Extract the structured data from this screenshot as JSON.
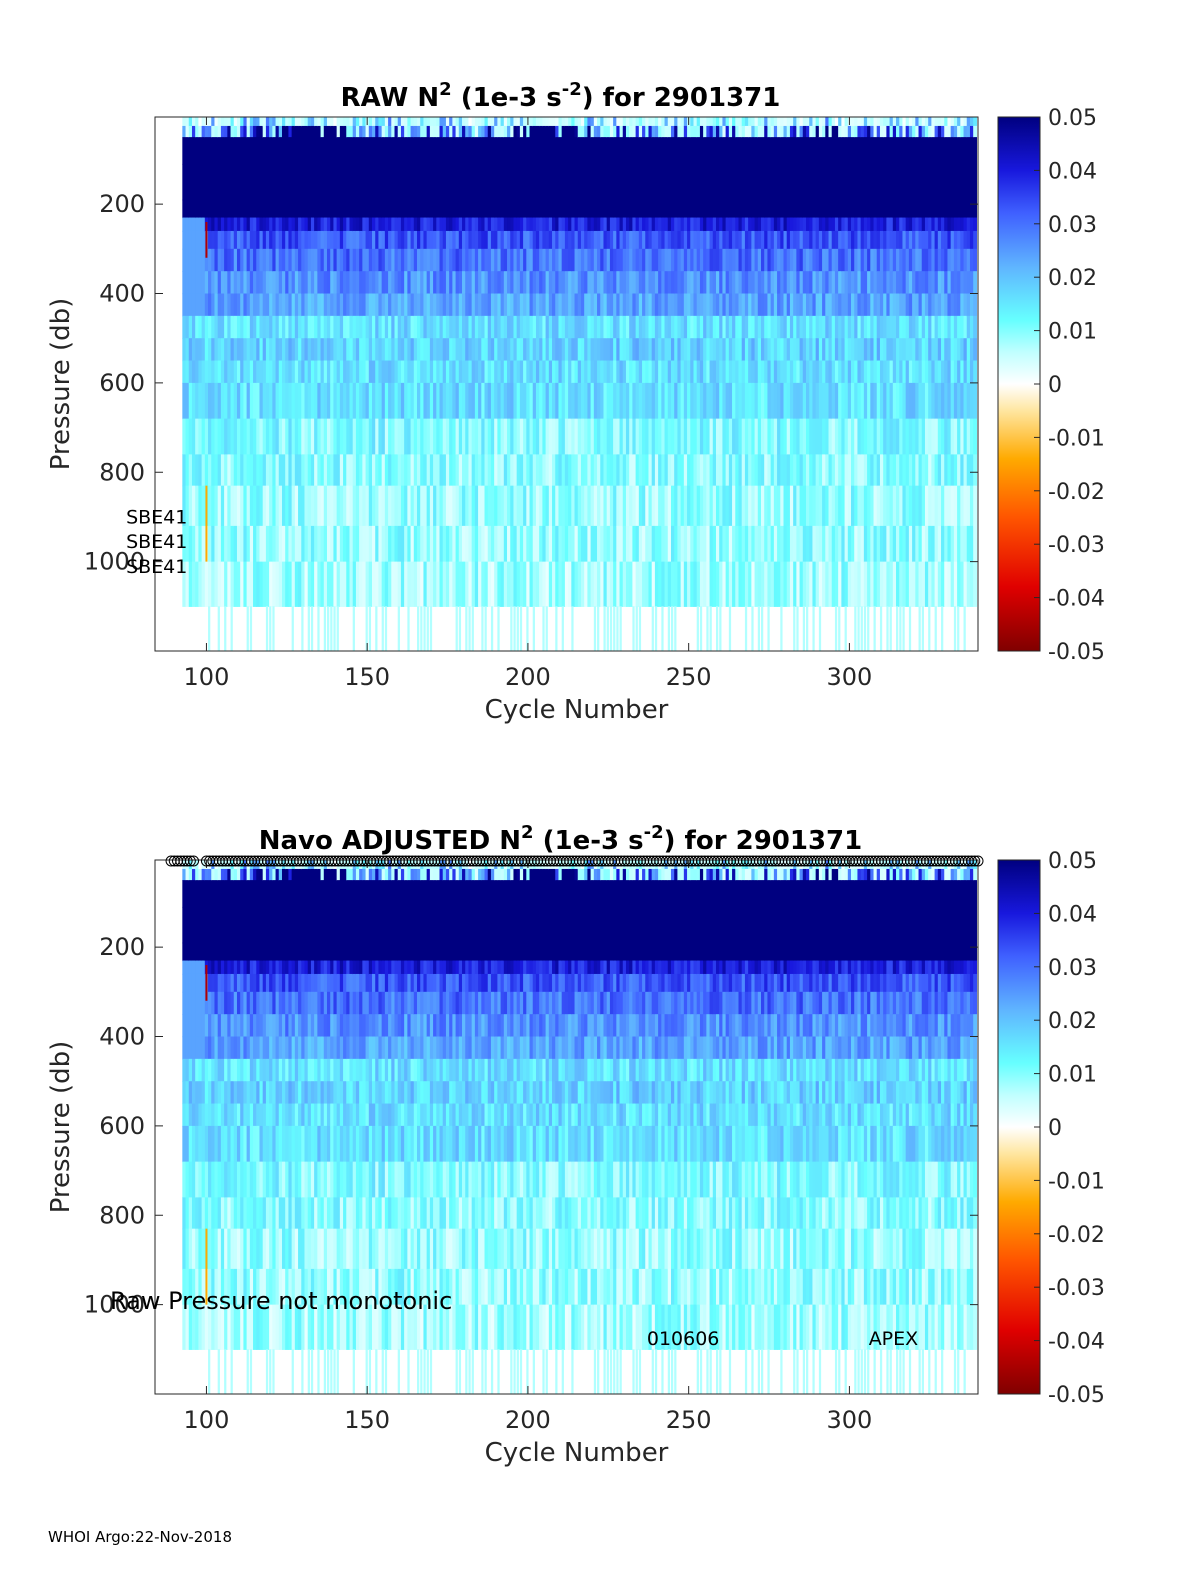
{
  "figure": {
    "footer": "WHOI Argo:22-Nov-2018"
  },
  "chart_data": [
    {
      "type": "heatmap",
      "title_parts": {
        "pre": "RAW N",
        "sup1": "2",
        "mid": " (1e-3 s",
        "sup2": "-2",
        "post": ") for 2901371"
      },
      "xlabel": "Cycle Number",
      "ylabel": "Pressure (db)",
      "xlim": [
        84,
        340
      ],
      "ylim": [
        1200,
        5
      ],
      "xticks": [
        100,
        150,
        200,
        250,
        300
      ],
      "yticks": [
        200,
        400,
        600,
        800,
        1000
      ],
      "colorbar": {
        "min": -0.05,
        "max": 0.05,
        "ticks": [
          "0.05",
          "0.04",
          "0.03",
          "0.02",
          "0.01",
          "0",
          "-0.01",
          "-0.02",
          "-0.03",
          "-0.04",
          "-0.05"
        ]
      },
      "annotations": [
        {
          "text": "SBE41",
          "x_data": 75,
          "y_data": 915
        },
        {
          "text": "SBE41",
          "x_data": 75,
          "y_data": 970
        },
        {
          "text": "SBE41",
          "x_data": 75,
          "y_data": 1025
        }
      ],
      "markers_top_row": false,
      "colormap": "jet-like (dark red → orange → white at 0 → cyan → blue → navy)"
    },
    {
      "type": "heatmap",
      "title_parts": {
        "pre": "Navo  ADJUSTED N",
        "sup1": "2",
        "mid": " (1e-3 s",
        "sup2": "-2",
        "post": ") for 2901371"
      },
      "xlabel": "Cycle Number",
      "ylabel": "Pressure (db)",
      "xlim": [
        84,
        340
      ],
      "ylim": [
        1200,
        5
      ],
      "xticks": [
        100,
        150,
        200,
        250,
        300
      ],
      "yticks": [
        200,
        400,
        600,
        800,
        1000
      ],
      "colorbar": {
        "min": -0.05,
        "max": 0.05,
        "ticks": [
          "0.05",
          "0.04",
          "0.03",
          "0.02",
          "0.01",
          "0",
          "-0.01",
          "-0.02",
          "-0.03",
          "-0.04",
          "-0.05"
        ]
      },
      "annotations": [
        {
          "text": "Raw Pressure not monotonic",
          "x_data": 70,
          "y_data": 1010
        },
        {
          "text": "010606",
          "x_data": 237,
          "y_data": 1090
        },
        {
          "text": "APEX",
          "x_data": 306,
          "y_data": 1090
        }
      ],
      "markers_top_row": true,
      "colormap": "jet-like (dark red → orange → white at 0 → cyan → blue → navy)"
    }
  ]
}
